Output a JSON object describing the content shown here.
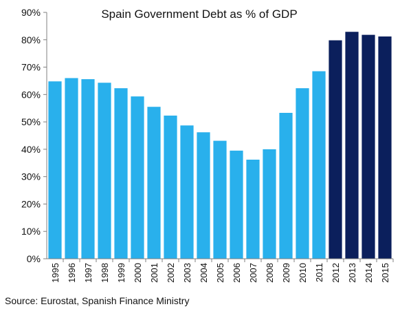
{
  "chart_data": {
    "type": "bar",
    "title": "Spain Government Debt as % of GDP",
    "categories": [
      "1995",
      "1996",
      "1997",
      "1998",
      "1999",
      "2000",
      "2001",
      "2002",
      "2003",
      "2004",
      "2005",
      "2006",
      "2007",
      "2008",
      "2009",
      "2010",
      "2011",
      "2012",
      "2013",
      "2014",
      "2015"
    ],
    "values": [
      64.8,
      66.0,
      65.6,
      64.3,
      62.3,
      59.3,
      55.5,
      52.3,
      48.7,
      46.2,
      43.1,
      39.5,
      36.2,
      40.0,
      53.3,
      62.3,
      68.5,
      79.8,
      82.9,
      81.8,
      81.2
    ],
    "ylim": [
      0,
      90
    ],
    "yticks": [
      0,
      10,
      20,
      30,
      40,
      50,
      60,
      70,
      80,
      90
    ],
    "ytick_labels": [
      "0%",
      "10%",
      "20%",
      "30%",
      "40%",
      "50%",
      "60%",
      "70%",
      "80%",
      "90%"
    ],
    "xlabel": "",
    "ylabel": "",
    "grid": false,
    "colors": {
      "actual": "#29b0ec",
      "forecast": "#0b1f5c"
    },
    "forecast_from_index": 17
  },
  "source": "Source: Eurostat, Spanish Finance Ministry"
}
